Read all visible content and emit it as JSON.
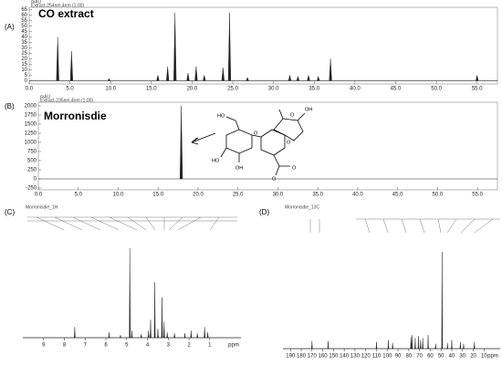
{
  "chart_data": [
    {
      "type": "chromatogram",
      "panel_label": "(A)",
      "title": "CO extract",
      "y_unit": "mAU",
      "subtitle": "Extract-254nm,4nm (1.00)",
      "x": [
        3.5,
        5.2,
        9.8,
        15.8,
        17.0,
        17.9,
        19.5,
        20.5,
        21.5,
        23.8,
        24.6,
        26.8,
        32.0,
        33.0,
        34.3,
        35.5,
        37.0,
        55.0
      ],
      "values": [
        40,
        27,
        2,
        5,
        13,
        62,
        7,
        13,
        5,
        12,
        62,
        3,
        5,
        4,
        5,
        4,
        20,
        5
      ],
      "color": "#222",
      "xlim": [
        0,
        57.5
      ],
      "ylim": [
        -3,
        67
      ],
      "xticks": [
        {
          "value": 0,
          "label": "0.0"
        },
        {
          "value": 5,
          "label": "5.0"
        },
        {
          "value": 10,
          "label": "10.0"
        },
        {
          "value": 15,
          "label": "15.0"
        },
        {
          "value": 20,
          "label": "20.0"
        },
        {
          "value": 25,
          "label": "25.0"
        },
        {
          "value": 30,
          "label": "30.0"
        },
        {
          "value": 35,
          "label": "35.0"
        },
        {
          "value": 40,
          "label": "40.0"
        },
        {
          "value": 45,
          "label": "45.0"
        },
        {
          "value": 50,
          "label": "50.0"
        },
        {
          "value": 55,
          "label": "55.0"
        }
      ],
      "yticks": [
        0,
        5,
        10,
        15,
        20,
        25,
        30,
        35,
        40,
        45,
        50,
        55,
        60,
        65
      ]
    },
    {
      "type": "chromatogram",
      "panel_label": "(B)",
      "title": "Morronisdie",
      "y_unit": "mAU",
      "subtitle": "Extract-235nm,4nm (1.00)",
      "x": [
        17.9
      ],
      "values": [
        2000
      ],
      "color": "#222",
      "xlim": [
        0,
        57.5
      ],
      "ylim": [
        -300,
        2100
      ],
      "xticks": [
        {
          "value": 0,
          "label": "0.0"
        },
        {
          "value": 5,
          "label": "5.0"
        },
        {
          "value": 10,
          "label": "10.0"
        },
        {
          "value": 15,
          "label": "15.0"
        },
        {
          "value": 20,
          "label": "20.0"
        },
        {
          "value": 25,
          "label": "25.0"
        },
        {
          "value": 30,
          "label": "30.0"
        },
        {
          "value": 35,
          "label": "35.0"
        },
        {
          "value": 40,
          "label": "40.0"
        },
        {
          "value": 45,
          "label": "45.0"
        },
        {
          "value": 50,
          "label": "50.0"
        },
        {
          "value": 55,
          "label": "55.0"
        }
      ],
      "yticks": [
        -250,
        0,
        250,
        500,
        750,
        1000,
        1250,
        1500,
        1750,
        2000
      ],
      "structure_labels": [
        "HO",
        "O",
        "HO",
        "OH",
        "OH",
        "O",
        "O",
        "O",
        "O"
      ]
    },
    {
      "type": "nmr",
      "panel_label": "(C)",
      "subtitle": "Morronisdie_1H",
      "x_unit": "ppm",
      "x": [
        7.5,
        5.85,
        5.3,
        4.85,
        4.75,
        4.3,
        3.95,
        3.85,
        3.65,
        3.5,
        3.3,
        3.2,
        3.05,
        2.7,
        2.2,
        1.9,
        1.6,
        1.25,
        1.1
      ],
      "values": [
        12,
        6,
        3,
        100,
        8,
        4,
        8,
        20,
        62,
        10,
        45,
        18,
        6,
        5,
        5,
        8,
        5,
        12,
        6
      ],
      "color": "#222",
      "xlim": [
        10,
        -0.5
      ],
      "ylim": [
        0,
        100
      ],
      "xticks": [
        9,
        8,
        7,
        6,
        5,
        4,
        3,
        2,
        1
      ]
    },
    {
      "type": "nmr",
      "panel_label": "(D)",
      "subtitle": "Morronisdie_13C",
      "x_unit": "ppm",
      "x": [
        170,
        155,
        110,
        99,
        95,
        78,
        77,
        74,
        71,
        69,
        67,
        62,
        55,
        49,
        44,
        40,
        32,
        29,
        19
      ],
      "values": [
        8,
        8,
        7,
        9,
        6,
        12,
        14,
        11,
        13,
        9,
        11,
        14,
        5,
        100,
        6,
        9,
        7,
        5,
        7
      ],
      "color": "#222",
      "xlim": [
        197,
        -5
      ],
      "ylim": [
        0,
        100
      ],
      "xticks": [
        190,
        180,
        170,
        160,
        150,
        140,
        130,
        120,
        110,
        100,
        90,
        80,
        70,
        60,
        50,
        40,
        30,
        20,
        10
      ]
    }
  ]
}
